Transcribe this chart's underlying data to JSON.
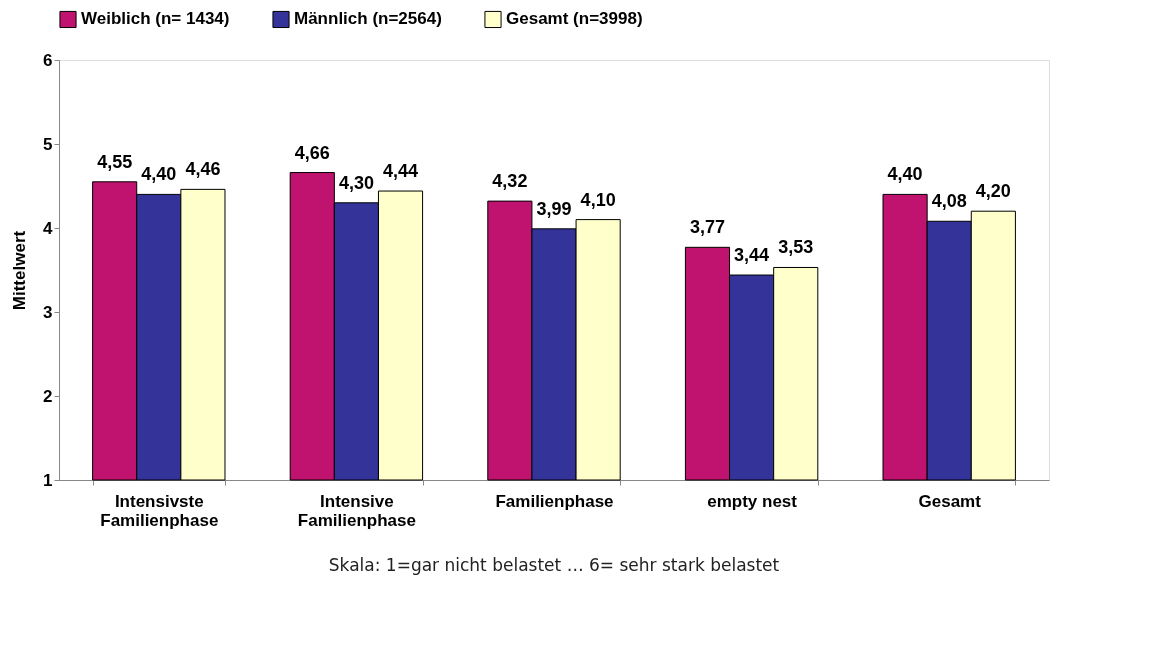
{
  "chart_data": {
    "type": "bar",
    "ylabel": "Mittelwert",
    "categories": [
      "Intensivste\nFamilienphase",
      "Intensive\nFamilienphase",
      "Familienphase",
      "empty nest",
      "Gesamt"
    ],
    "series": [
      {
        "name": "Weiblich (n= 1434)",
        "color": "#c0136f",
        "values": [
          4.55,
          4.66,
          4.32,
          3.77,
          4.4
        ],
        "value_labels": [
          "4,55",
          "4,66",
          "4,32",
          "3,77",
          "4,40"
        ]
      },
      {
        "name": "Männlich (n=2564)",
        "color": "#333399",
        "values": [
          4.4,
          4.3,
          3.99,
          3.44,
          4.08
        ],
        "value_labels": [
          "4,40",
          "4,30",
          "3,99",
          "3,44",
          "4,08"
        ]
      },
      {
        "name": "Gesamt (n=3998)",
        "color": "#ffffcc",
        "values": [
          4.46,
          4.44,
          4.1,
          3.53,
          4.2
        ],
        "value_labels": [
          "4,46",
          "4,44",
          "4,10",
          "3,53",
          "4,20"
        ]
      }
    ],
    "ylim": [
      1,
      6
    ],
    "yticks": [
      1,
      2,
      3,
      4,
      5,
      6
    ],
    "grid": false,
    "legend": "top",
    "annotations": [
      "Skala: 1=gar nicht belastet … 6= sehr stark belastet"
    ]
  }
}
